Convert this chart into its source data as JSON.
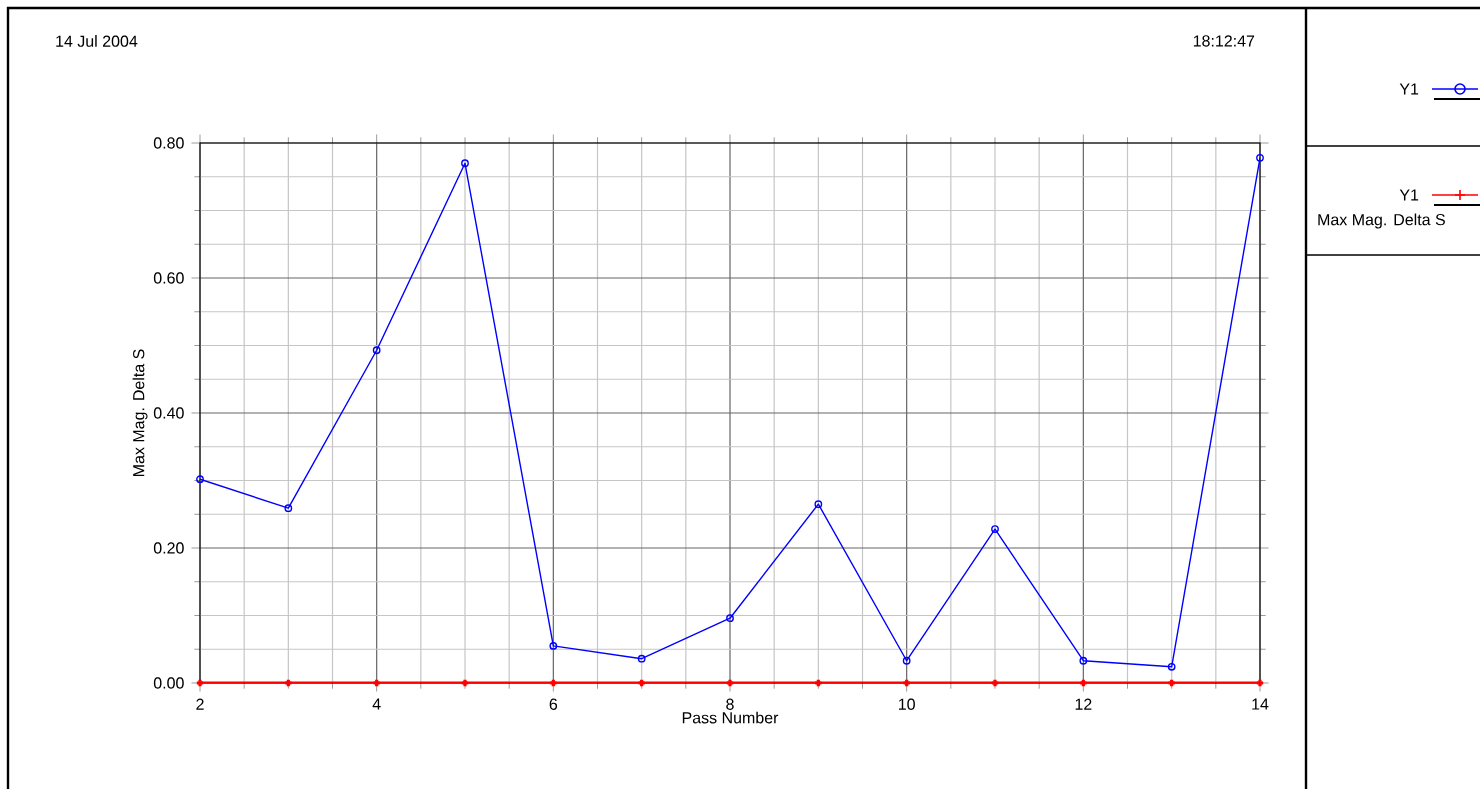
{
  "chart_data": {
    "type": "line",
    "xlabel": "Pass Number",
    "ylabel": "Max Mag. Delta S",
    "annotations": [
      "14 Jul 2004",
      "18:12:47",
      "Max Mag. Delta S"
    ],
    "x": [
      2,
      3,
      4,
      5,
      6,
      7,
      8,
      9,
      10,
      11,
      12,
      13,
      14
    ],
    "series": [
      {
        "name": "Y1",
        "color": "#0000ff",
        "marker": "circle",
        "values": [
          0.302,
          0.259,
          0.493,
          0.77,
          0.055,
          0.036,
          0.096,
          0.265,
          0.033,
          0.228,
          0.033,
          0.024,
          0.778
        ]
      },
      {
        "name": "Y1",
        "color": "#ff0000",
        "marker": "cross",
        "values": [
          0,
          0,
          0,
          0,
          0,
          0,
          0,
          0,
          0,
          0,
          0,
          0,
          0
        ]
      }
    ],
    "xlim": [
      2,
      14
    ],
    "xticks": [
      2,
      4,
      6,
      8,
      10,
      12,
      14
    ],
    "ylim": [
      0,
      0.8
    ],
    "yticks": [
      {
        "value": 0,
        "label": "0.00"
      },
      {
        "value": 0.2,
        "label": "0.20"
      },
      {
        "value": 0.4,
        "label": "0.40"
      },
      {
        "value": 0.6,
        "label": "0.60"
      },
      {
        "value": 0.8,
        "label": "0.80"
      }
    ],
    "grid": true,
    "legend": "right",
    "line_style": "solid"
  }
}
